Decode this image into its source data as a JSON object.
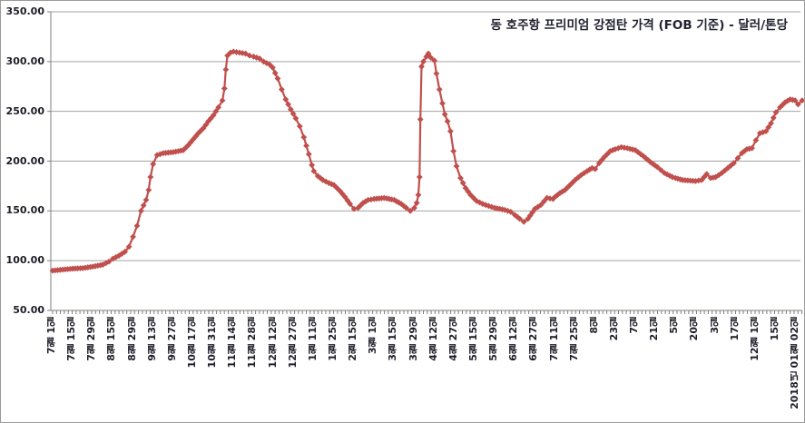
{
  "chart_data": {
    "type": "line",
    "title": "동 호주항 프리미엄 강점탄 가격 (FOB 기준) - 달러/톤당",
    "series_name": "동 호주항 프리미엄 강점탄 가격",
    "series_color": "#C0504D",
    "grid_color": "#a3a3a3",
    "axis_color": "#7f7f7f",
    "ylim": [
      50,
      350
    ],
    "ytick_labels": [
      "50.00",
      "100.00",
      "150.00",
      "200.00",
      "250.00",
      "300.00",
      "350.00"
    ],
    "yticks": [
      50,
      100,
      150,
      200,
      250,
      300,
      350
    ],
    "grid": true,
    "legend": "none",
    "x_tick_labels": [
      "7월 1일",
      "7월 15일",
      "7월 29일",
      "8월 15일",
      "8월 29일",
      "9월 13일",
      "9월 27일",
      "10월 17일",
      "10월 31일",
      "11월 14일",
      "11월 28일",
      "12월 12일",
      "12월 27일",
      "1월 11일",
      "1월 25일",
      "2월 15일",
      "3월 1일",
      "3월 15일",
      "3월 29일",
      "4월 12일",
      "4월 27일",
      "5월 15일",
      "5월 29일",
      "6월 12일",
      "6월 27일",
      "7월 11일",
      "7월 25일",
      "8일",
      "23일",
      "7일",
      "21일",
      "5일",
      "20일",
      "3일",
      "17일",
      "12월 1일",
      "15일",
      "2018년 01월 02일"
    ],
    "points": [
      [
        0,
        90
      ],
      [
        0.5,
        91
      ],
      [
        1,
        92
      ],
      [
        1.5,
        92.5
      ],
      [
        2,
        94
      ],
      [
        2.5,
        96
      ],
      [
        2.8,
        99
      ],
      [
        3,
        102
      ],
      [
        3.3,
        105
      ],
      [
        3.6,
        109
      ],
      [
        3.8,
        114
      ],
      [
        4,
        124
      ],
      [
        4.2,
        135
      ],
      [
        4.4,
        150
      ],
      [
        4.65,
        161
      ],
      [
        4.78,
        171
      ],
      [
        4.87,
        184
      ],
      [
        5,
        197
      ],
      [
        5.2,
        206
      ],
      [
        5.5,
        208
      ],
      [
        6,
        209
      ],
      [
        6.5,
        211
      ],
      [
        6.75,
        216
      ],
      [
        7,
        222
      ],
      [
        7.25,
        228
      ],
      [
        7.5,
        233
      ],
      [
        7.75,
        240
      ],
      [
        8,
        246
      ],
      [
        8.25,
        254
      ],
      [
        8.45,
        261
      ],
      [
        8.55,
        273
      ],
      [
        8.62,
        292
      ],
      [
        8.7,
        306
      ],
      [
        8.85,
        309
      ],
      [
        9,
        310
      ],
      [
        9.3,
        309
      ],
      [
        9.6,
        308
      ],
      [
        9.8,
        306
      ],
      [
        10,
        305
      ],
      [
        10.3,
        303
      ],
      [
        10.5,
        300
      ],
      [
        10.8,
        297
      ],
      [
        10.95,
        294
      ],
      [
        11.2,
        283
      ],
      [
        11.4,
        272
      ],
      [
        11.6,
        262
      ],
      [
        11.85,
        252
      ],
      [
        12.1,
        243
      ],
      [
        12.3,
        235
      ],
      [
        12.5,
        224
      ],
      [
        12.75,
        207
      ],
      [
        12.9,
        196
      ],
      [
        13,
        190
      ],
      [
        13.2,
        185
      ],
      [
        13.45,
        181
      ],
      [
        13.75,
        178
      ],
      [
        14,
        176
      ],
      [
        14.3,
        170
      ],
      [
        14.55,
        164
      ],
      [
        14.8,
        157
      ],
      [
        15,
        152
      ],
      [
        15.2,
        153
      ],
      [
        15.45,
        158
      ],
      [
        15.7,
        161
      ],
      [
        16,
        162
      ],
      [
        16.5,
        163
      ],
      [
        17,
        161
      ],
      [
        17.35,
        157
      ],
      [
        17.6,
        153
      ],
      [
        17.8,
        150
      ],
      [
        18,
        153
      ],
      [
        18.12,
        158
      ],
      [
        18.2,
        166
      ],
      [
        18.26,
        184
      ],
      [
        18.3,
        242
      ],
      [
        18.36,
        295
      ],
      [
        18.45,
        300
      ],
      [
        18.6,
        305
      ],
      [
        18.7,
        308
      ],
      [
        18.82,
        304
      ],
      [
        19,
        301
      ],
      [
        19.1,
        288
      ],
      [
        19.25,
        272
      ],
      [
        19.4,
        258
      ],
      [
        19.52,
        247
      ],
      [
        19.65,
        240
      ],
      [
        19.8,
        230
      ],
      [
        19.95,
        210
      ],
      [
        20.1,
        195
      ],
      [
        20.3,
        183
      ],
      [
        20.55,
        173
      ],
      [
        20.8,
        166
      ],
      [
        21.1,
        160
      ],
      [
        21.4,
        157
      ],
      [
        22,
        153
      ],
      [
        22.5,
        151
      ],
      [
        22.8,
        149
      ],
      [
        23,
        146
      ],
      [
        23.25,
        142
      ],
      [
        23.45,
        139
      ],
      [
        23.65,
        142
      ],
      [
        24,
        152
      ],
      [
        24.3,
        156
      ],
      [
        24.6,
        163
      ],
      [
        24.9,
        162
      ],
      [
        25,
        164
      ],
      [
        25.25,
        168
      ],
      [
        25.5,
        171
      ],
      [
        25.75,
        176
      ],
      [
        26,
        181
      ],
      [
        26.3,
        186
      ],
      [
        26.6,
        190
      ],
      [
        26.85,
        193
      ],
      [
        27,
        192
      ],
      [
        27.2,
        198
      ],
      [
        27.45,
        204
      ],
      [
        27.75,
        210
      ],
      [
        28,
        212
      ],
      [
        28.3,
        214
      ],
      [
        28.6,
        213
      ],
      [
        29,
        211
      ],
      [
        29.4,
        205
      ],
      [
        29.75,
        199
      ],
      [
        30.1,
        194
      ],
      [
        30.45,
        188
      ],
      [
        30.85,
        184
      ],
      [
        31,
        183
      ],
      [
        31.35,
        181
      ],
      [
        32,
        180
      ],
      [
        32.3,
        181
      ],
      [
        32.55,
        187
      ],
      [
        32.75,
        183
      ],
      [
        33,
        184
      ],
      [
        33.3,
        188
      ],
      [
        33.6,
        193
      ],
      [
        33.9,
        198
      ],
      [
        34.1,
        203
      ],
      [
        34.3,
        208
      ],
      [
        34.55,
        212
      ],
      [
        34.8,
        213
      ],
      [
        35,
        221
      ],
      [
        35.2,
        228
      ],
      [
        35.5,
        230
      ],
      [
        35.75,
        238
      ],
      [
        36,
        249
      ],
      [
        36.2,
        254
      ],
      [
        36.45,
        259
      ],
      [
        36.7,
        262
      ],
      [
        36.95,
        261
      ],
      [
        37.1,
        257
      ],
      [
        37.3,
        261
      ]
    ]
  }
}
